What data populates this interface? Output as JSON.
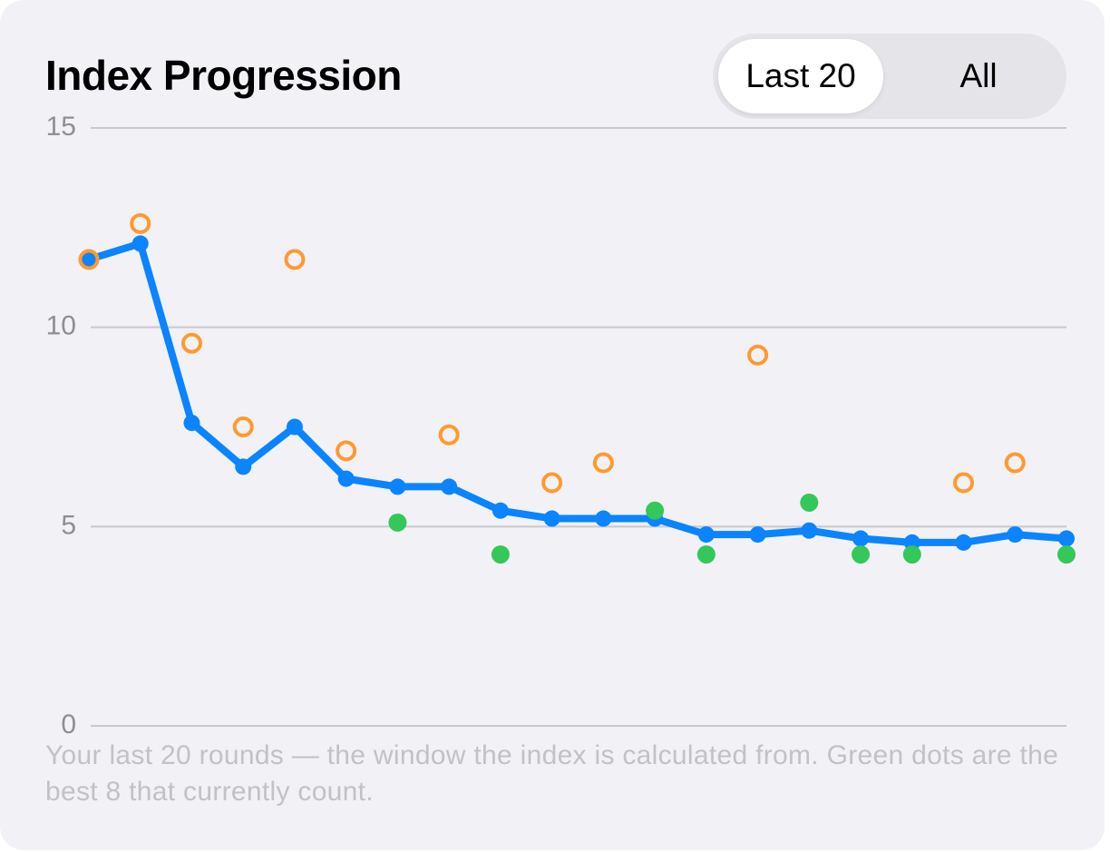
{
  "header": {
    "title": "Index Progression"
  },
  "segmented_control": {
    "options": [
      "Last 20",
      "All"
    ]
  },
  "chart_data": {
    "type": "line",
    "categories": [
      null,
      null,
      null,
      null,
      null,
      null,
      null,
      null,
      null,
      null,
      null,
      null,
      null,
      null,
      null,
      null,
      null,
      null,
      null,
      null
    ],
    "series": [
      {
        "type": "line",
        "color": "#0a84ff",
        "values": [
          11.7,
          12.1,
          7.6,
          6.5,
          7.5,
          6.2,
          6.0,
          6.0,
          5.4,
          5.2,
          5.2,
          5.2,
          4.8,
          4.8,
          4.9,
          4.7,
          4.6,
          4.6,
          4.8,
          4.7
        ]
      },
      {
        "type": "scatter",
        "color": "#ff9a2e",
        "fill": "none",
        "values": [
          11.7,
          12.6,
          9.6,
          7.5,
          11.7,
          6.9,
          null,
          7.3,
          null,
          6.1,
          6.6,
          null,
          null,
          9.3,
          null,
          null,
          null,
          6.1,
          6.6,
          null
        ]
      },
      {
        "type": "scatter",
        "color": "#34c759",
        "fill": "#34c759",
        "values": [
          null,
          null,
          null,
          null,
          null,
          null,
          5.1,
          null,
          4.3,
          null,
          null,
          5.4,
          4.3,
          null,
          5.6,
          4.3,
          4.3,
          null,
          null,
          4.3
        ]
      }
    ],
    "ylim": [
      0,
      15
    ],
    "yticks": [
      0,
      5,
      10,
      15
    ],
    "grid": true,
    "caption": "Your last 20 rounds — the window the index is calculated from. Green dots are the best 8 that currently count."
  }
}
